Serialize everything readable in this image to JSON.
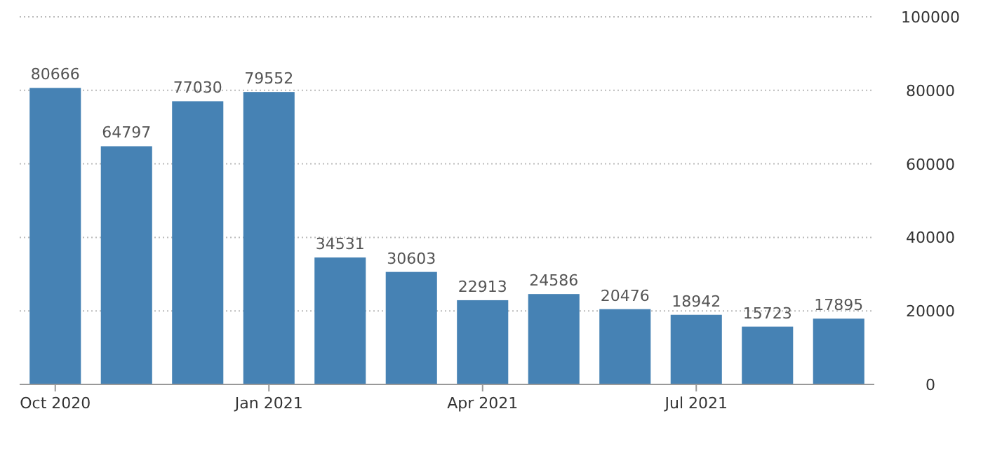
{
  "chart_data": {
    "type": "bar",
    "categories": [
      "Oct 2020",
      null,
      null,
      "Jan 2021",
      null,
      null,
      "Apr 2021",
      null,
      null,
      "Jul 2021",
      null,
      null
    ],
    "values": [
      80666,
      64797,
      77030,
      79552,
      34531,
      30603,
      22913,
      24586,
      20476,
      18942,
      15723,
      17895
    ],
    "color": "#4682b4",
    "ylim": [
      0,
      100000
    ],
    "yticks": [
      0,
      20000,
      40000,
      60000,
      80000,
      100000
    ],
    "grid": "y",
    "data_labels": true
  }
}
